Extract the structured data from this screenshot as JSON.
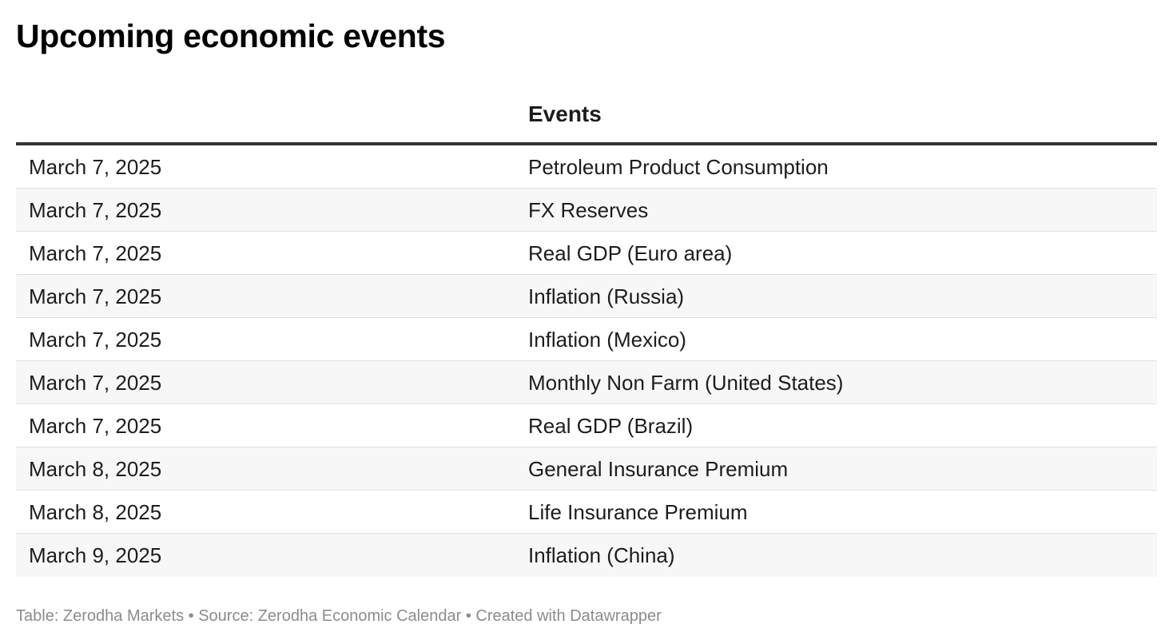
{
  "chart_data": {
    "type": "table",
    "title": "Upcoming economic events",
    "columns": [
      "",
      "Events"
    ],
    "rows": [
      {
        "date": "March 7, 2025",
        "event": "Petroleum Product Consumption"
      },
      {
        "date": "March 7, 2025",
        "event": "FX Reserves"
      },
      {
        "date": "March 7, 2025",
        "event": "Real GDP (Euro area)"
      },
      {
        "date": "March 7, 2025",
        "event": "Inflation (Russia)"
      },
      {
        "date": "March 7, 2025",
        "event": "Inflation (Mexico)"
      },
      {
        "date": "March 7, 2025",
        "event": "Monthly Non Farm (United States)"
      },
      {
        "date": "March 7, 2025",
        "event": "Real GDP (Brazil)"
      },
      {
        "date": "March 8, 2025",
        "event": "General Insurance Premium"
      },
      {
        "date": "March 8, 2025",
        "event": "Life Insurance Premium"
      },
      {
        "date": "March 9, 2025",
        "event": "Inflation (China)"
      }
    ],
    "footer": "Table: Zerodha Markets • Source: Zerodha Economic Calendar • Created with Datawrapper",
    "colors": {
      "header_rule": "#333333",
      "row_alt": "#f7f7f7",
      "row_divider": "#e0e0e0",
      "footer_text": "#8c8c8c"
    }
  }
}
